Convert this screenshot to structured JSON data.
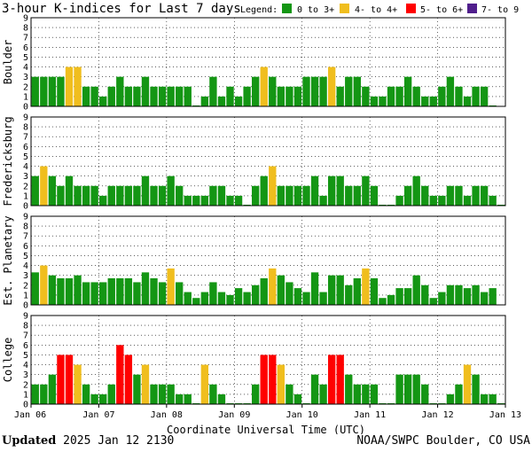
{
  "title": "3-hour K-indices for Last 7 days",
  "legend": {
    "label": "Legend:",
    "items": [
      {
        "label": "0 to 3+",
        "color": "#149614"
      },
      {
        "label": "4- to 4+",
        "color": "#f0be1e"
      },
      {
        "label": "5- to 6+",
        "color": "#ff0000"
      },
      {
        "label": "7- to 9",
        "color": "#501e8c"
      }
    ]
  },
  "footer": {
    "updated_label": "Updated",
    "updated_value": "2025 Jan 12 2130",
    "source": "NOAA/SWPC Boulder, CO USA"
  },
  "chart_data": {
    "type": "bar",
    "xlabel": "Coordinate Universal Time (UTC)",
    "x_tick_labels": [
      "Jan 06",
      "Jan 07",
      "Jan 08",
      "Jan 09",
      "Jan 10",
      "Jan 11",
      "Jan 12",
      "Jan 13"
    ],
    "y_tick_labels": [
      "0",
      "1",
      "2",
      "3",
      "4",
      "5",
      "6",
      "7",
      "8",
      "9"
    ],
    "ylim": [
      0,
      9
    ],
    "grid": true,
    "series": [
      {
        "name": "Boulder",
        "values": [
          3,
          3,
          3,
          3,
          4,
          4,
          2,
          2,
          1,
          2,
          3,
          2,
          2,
          3,
          2,
          2,
          2,
          2,
          2,
          0,
          1,
          3,
          1,
          2,
          1,
          2,
          3,
          4,
          3,
          2,
          2,
          2,
          3,
          3,
          3,
          4,
          2,
          3,
          3,
          2,
          1,
          1,
          2,
          2,
          3,
          2,
          1,
          1,
          2,
          3,
          2,
          1,
          2,
          2,
          0
        ]
      },
      {
        "name": "Fredericksburg",
        "values": [
          3,
          4,
          3,
          2,
          3,
          2,
          2,
          2,
          1,
          2,
          2,
          2,
          2,
          3,
          2,
          2,
          3,
          2,
          1,
          1,
          1,
          2,
          2,
          1,
          1,
          0,
          2,
          3,
          4,
          2,
          2,
          2,
          2,
          3,
          1,
          3,
          3,
          2,
          2,
          3,
          2,
          0,
          0,
          1,
          2,
          3,
          2,
          1,
          1,
          2,
          2,
          1,
          2,
          2,
          1,
          0
        ]
      },
      {
        "name": "Est. Planetary",
        "values": [
          3.3,
          4,
          3,
          2.7,
          2.7,
          3,
          2.3,
          2.3,
          2.3,
          2.7,
          2.7,
          2.7,
          2.3,
          3.3,
          2.7,
          2.3,
          3.7,
          2.3,
          1.3,
          0.7,
          1.3,
          2.3,
          1.3,
          1,
          1.7,
          1.3,
          2,
          2.7,
          3.7,
          3,
          2.3,
          1.7,
          1.3,
          3.3,
          1.3,
          3,
          3,
          2,
          2.7,
          3.7,
          2.7,
          0.7,
          1,
          1.7,
          1.7,
          3,
          2,
          0.7,
          1.3,
          2,
          2,
          1.7,
          2,
          1.3,
          1.7
        ]
      },
      {
        "name": "College",
        "values": [
          2,
          2,
          3,
          5,
          5,
          4,
          2,
          1,
          1,
          2,
          6,
          5,
          3,
          4,
          2,
          2,
          2,
          1,
          1,
          0,
          4,
          2,
          1,
          0,
          0,
          0,
          2,
          5,
          5,
          4,
          2,
          1,
          0,
          3,
          2,
          5,
          5,
          3,
          2,
          2,
          2,
          0,
          0,
          3,
          3,
          3,
          2,
          0,
          0,
          1,
          2,
          4,
          3,
          1,
          1,
          0
        ]
      }
    ]
  }
}
